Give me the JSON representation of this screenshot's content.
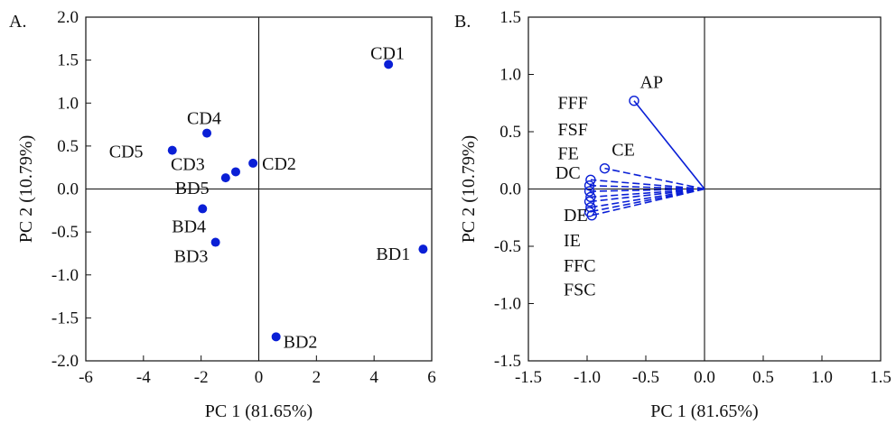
{
  "chart_data": [
    {
      "type": "scatter",
      "panel_label": "A.",
      "xlabel": "PC 1 (81.65%)",
      "ylabel": "PC 2 (10.79%)",
      "xlim": [
        -6,
        6
      ],
      "ylim": [
        -2.0,
        2.0
      ],
      "xticks": [
        "-6",
        "-4",
        "-2",
        "0",
        "2",
        "4",
        "6"
      ],
      "yticks": [
        "2.0",
        "1.5",
        "1.0",
        "0.5",
        "0.0",
        "-0.5",
        "-1.0",
        "-1.5",
        "-2.0"
      ],
      "points": [
        {
          "label": "CD1",
          "x": 4.5,
          "y": 1.45
        },
        {
          "label": "CD2",
          "x": -0.2,
          "y": 0.3
        },
        {
          "label": "CD3",
          "x": -0.8,
          "y": 0.2
        },
        {
          "label": "CD4",
          "x": -1.8,
          "y": 0.65
        },
        {
          "label": "CD5",
          "x": -3.0,
          "y": 0.45
        },
        {
          "label": "BD1",
          "x": 5.7,
          "y": -0.7
        },
        {
          "label": "BD2",
          "x": 0.6,
          "y": -1.72
        },
        {
          "label": "BD3",
          "x": -1.5,
          "y": -0.62
        },
        {
          "label": "BD4",
          "x": -1.95,
          "y": -0.23
        },
        {
          "label": "BD5",
          "x": -1.15,
          "y": 0.13
        }
      ],
      "color": "#0a1fd6"
    },
    {
      "type": "scatter",
      "panel_label": "B.",
      "xlabel": "PC 1 (81.65%)",
      "ylabel": "PC 2 (10.79%)",
      "xlim": [
        -1.5,
        1.5
      ],
      "ylim": [
        -1.5,
        1.5
      ],
      "xticks": [
        "-1.5",
        "-1.0",
        "-0.5",
        "0.0",
        "0.5",
        "1.0",
        "1.5"
      ],
      "yticks": [
        "1.5",
        "1.0",
        "0.5",
        "0.0",
        "-0.5",
        "-1.0",
        "-1.5"
      ],
      "loadings": [
        {
          "x": -0.6,
          "y": 0.77,
          "style": "solid"
        },
        {
          "x": -0.85,
          "y": 0.18,
          "style": "dashed"
        },
        {
          "x": -0.97,
          "y": 0.08,
          "style": "dashed"
        },
        {
          "x": -0.98,
          "y": 0.03,
          "style": "dashed"
        },
        {
          "x": -0.98,
          "y": -0.02,
          "style": "dashed"
        },
        {
          "x": -0.97,
          "y": -0.07,
          "style": "dashed"
        },
        {
          "x": -0.98,
          "y": -0.11,
          "style": "dashed"
        },
        {
          "x": -0.97,
          "y": -0.16,
          "style": "dashed"
        },
        {
          "x": -0.98,
          "y": -0.2,
          "style": "dashed"
        },
        {
          "x": -0.96,
          "y": -0.23,
          "style": "dashed"
        }
      ],
      "var_labels": [
        {
          "text": "AP",
          "x": -0.55,
          "y": 0.88
        },
        {
          "text": "FFF",
          "x": -1.25,
          "y": 0.7
        },
        {
          "text": "FSF",
          "x": -1.25,
          "y": 0.47
        },
        {
          "text": "FE",
          "x": -1.25,
          "y": 0.26
        },
        {
          "text": "CE",
          "x": -0.79,
          "y": 0.29
        },
        {
          "text": "DC",
          "x": -1.27,
          "y": 0.09
        },
        {
          "text": "DE",
          "x": -1.2,
          "y": -0.28
        },
        {
          "text": "IE",
          "x": -1.2,
          "y": -0.5
        },
        {
          "text": "FFC",
          "x": -1.2,
          "y": -0.72
        },
        {
          "text": "FSC",
          "x": -1.2,
          "y": -0.93
        }
      ],
      "color": "#0a1fd6"
    }
  ]
}
